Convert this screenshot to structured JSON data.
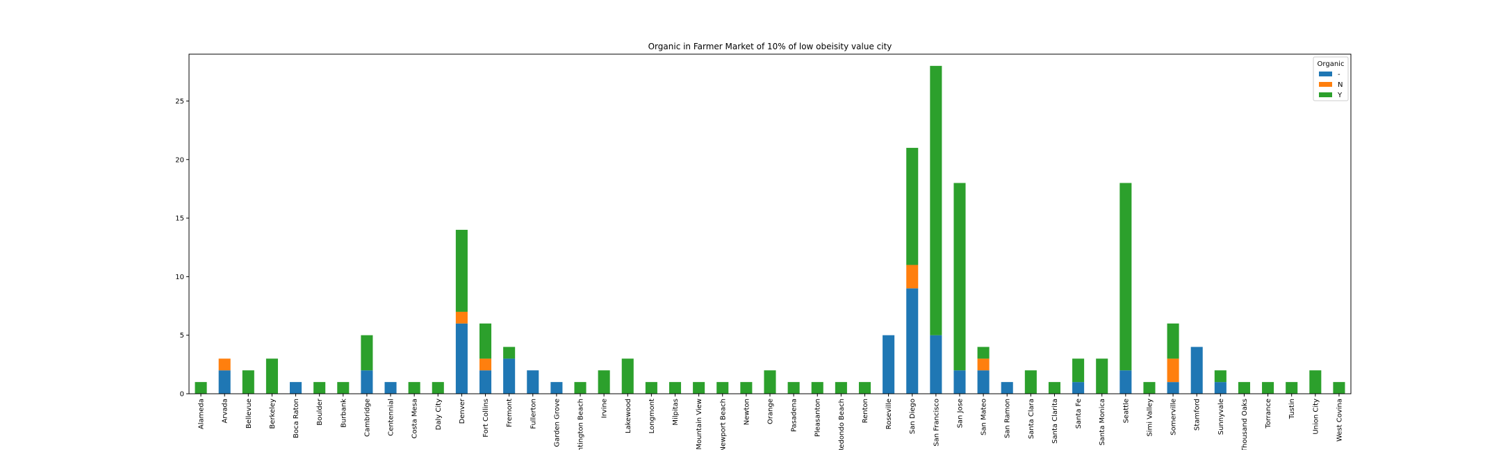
{
  "chart_data": {
    "type": "bar",
    "stacked": true,
    "title": "Organic in Farmer Market of 10% of low obeisity value city",
    "xlabel": "",
    "ylabel": "",
    "ylim": [
      0,
      29
    ],
    "yticks": [
      0,
      5,
      10,
      15,
      20,
      25
    ],
    "grid": false,
    "legend": {
      "title": "Organic",
      "position": "top-right"
    },
    "categories": [
      "Alameda",
      "Arvada",
      "Bellevue",
      "Berkeley",
      "Boca Raton",
      "Boulder",
      "Burbank",
      "Cambridge",
      "Centennial",
      "Costa Mesa",
      "Daly City",
      "Denver",
      "Fort Collins",
      "Fremont",
      "Fullerton",
      "Garden Grove",
      "Huntington Beach",
      "Irvine",
      "Lakewood",
      "Longmont",
      "Milpitas",
      "Mountain View",
      "Newport Beach",
      "Newton",
      "Orange",
      "Pasadena",
      "Pleasanton",
      "Redondo Beach",
      "Renton",
      "Roseville",
      "San Diego",
      "San Francisco",
      "San Jose",
      "San Mateo",
      "San Ramon",
      "Santa Clara",
      "Santa Clarita",
      "Santa Fe",
      "Santa Monica",
      "Seattle",
      "Simi Valley",
      "Somerville",
      "Stamford",
      "Sunnyvale",
      "Thousand Oaks",
      "Torrance",
      "Tustin",
      "Union City",
      "West Covina"
    ],
    "series": [
      {
        "name": "-",
        "color": "#1f77b4",
        "values": [
          0,
          2,
          0,
          0,
          1,
          0,
          0,
          2,
          1,
          0,
          0,
          6,
          2,
          3,
          2,
          1,
          0,
          0,
          0,
          0,
          0,
          0,
          0,
          0,
          0,
          0,
          0,
          0,
          0,
          5,
          9,
          5,
          2,
          2,
          1,
          0,
          0,
          1,
          0,
          2,
          0,
          1,
          4,
          1,
          0,
          0,
          0,
          0,
          0
        ]
      },
      {
        "name": "N",
        "color": "#ff7f0e",
        "values": [
          0,
          1,
          0,
          0,
          0,
          0,
          0,
          0,
          0,
          0,
          0,
          1,
          1,
          0,
          0,
          0,
          0,
          0,
          0,
          0,
          0,
          0,
          0,
          0,
          0,
          0,
          0,
          0,
          0,
          0,
          2,
          0,
          0,
          1,
          0,
          0,
          0,
          0,
          0,
          0,
          0,
          2,
          0,
          0,
          0,
          0,
          0,
          0,
          0
        ]
      },
      {
        "name": "Y",
        "color": "#2ca02c",
        "values": [
          1,
          0,
          2,
          3,
          0,
          1,
          1,
          3,
          0,
          1,
          1,
          7,
          3,
          1,
          0,
          0,
          1,
          2,
          3,
          1,
          1,
          1,
          1,
          1,
          2,
          1,
          1,
          1,
          1,
          0,
          10,
          23,
          16,
          1,
          0,
          2,
          1,
          2,
          3,
          16,
          1,
          3,
          0,
          1,
          1,
          1,
          1,
          2,
          1
        ]
      }
    ]
  }
}
